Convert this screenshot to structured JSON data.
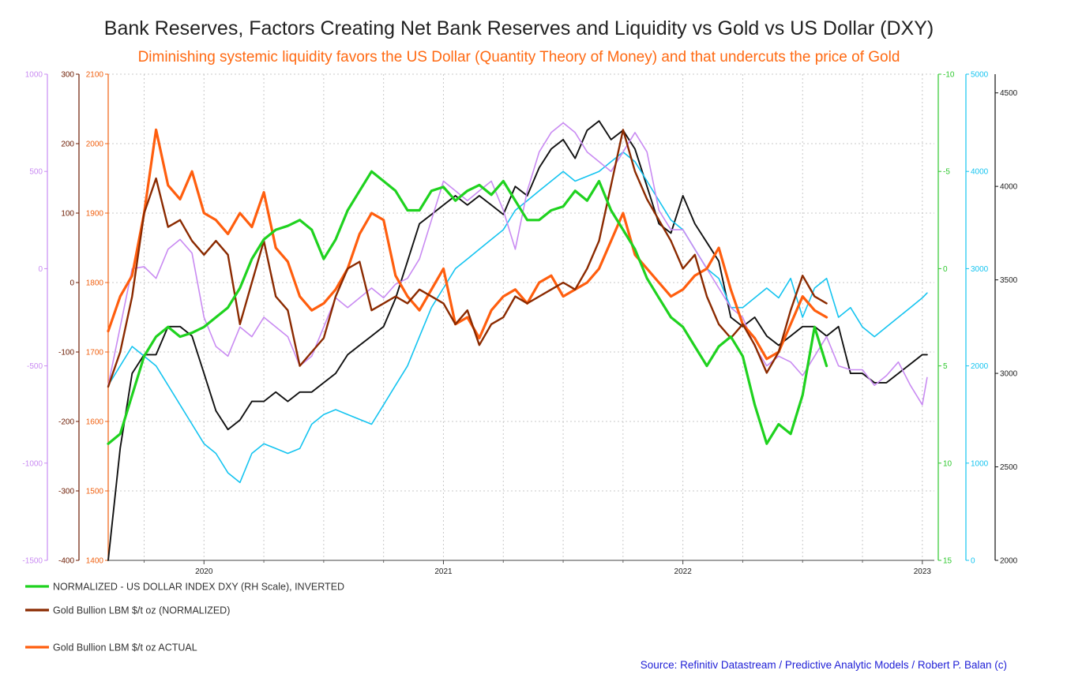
{
  "chart_data": {
    "type": "line",
    "title": "Bank Reserves, Factors Creating Net Bank Reserves and Liquidity vs Gold vs US Dollar (DXY)",
    "subtitle": "Diminishing systemic liquidity favors the US Dollar (Quantity Theory of Money) and that undercuts the price of Gold",
    "source": "Source: Refinitiv Datastream / Predictive Analytic Models / Robert P. Balan (c)",
    "x_range": [
      2019.6,
      2023.05
    ],
    "x_ticks": [
      {
        "label": "2020",
        "value": 2020.0
      },
      {
        "label": "2021",
        "value": 2021.0
      },
      {
        "label": "2022",
        "value": 2022.0
      },
      {
        "label": "2023",
        "value": 2023.0
      }
    ],
    "x_minor": [
      2019.75,
      2020.25,
      2020.5,
      2020.75,
      2021.25,
      2021.5,
      2021.75,
      2022.25,
      2022.5,
      2022.75
    ],
    "grid": true,
    "axes": [
      {
        "id": "purple",
        "side": "left",
        "slot": 0,
        "color": "#c98bf2",
        "range": [
          -1500,
          1000
        ],
        "ticks": [
          "-1500",
          "-1000",
          "-500",
          "0",
          "500",
          "1000"
        ]
      },
      {
        "id": "dark",
        "side": "left",
        "slot": 1,
        "color": "#6b1a00",
        "range": [
          -400,
          300
        ],
        "ticks": [
          "-400",
          "-300",
          "-200",
          "-100",
          "0",
          "100",
          "200",
          "300"
        ]
      },
      {
        "id": "orange",
        "side": "left",
        "slot": 2,
        "color": "#f06010",
        "range": [
          1400,
          2100
        ],
        "ticks": [
          "1400",
          "1500",
          "1600",
          "1700",
          "1800",
          "1900",
          "2000",
          "2100"
        ]
      },
      {
        "id": "green",
        "side": "right",
        "slot": 0,
        "color": "#2ec82e",
        "range": [
          15,
          -10
        ],
        "ticks": [
          "15",
          "10",
          "5",
          "0",
          "-5",
          "-10"
        ]
      },
      {
        "id": "cyan",
        "side": "right",
        "slot": 1,
        "color": "#15c4f0",
        "range": [
          0,
          5000
        ],
        "ticks": [
          "0",
          "1000",
          "2000",
          "3000",
          "4000",
          "5000"
        ]
      },
      {
        "id": "black",
        "side": "right",
        "slot": 2,
        "color": "#111111",
        "range": [
          2000,
          4600
        ],
        "ticks": [
          "2000",
          "2500",
          "3000",
          "3500",
          "4000",
          "4500"
        ]
      }
    ],
    "series": [
      {
        "name": "NORMALIZED - US DOLLAR INDEX DXY (RH Scale), INVERTED",
        "axis": "green",
        "color": "#1fd21f",
        "width": 3.2,
        "legend": true,
        "x": [
          2019.6,
          2019.65,
          2019.7,
          2019.75,
          2019.8,
          2019.85,
          2019.9,
          2019.95,
          2020.0,
          2020.05,
          2020.1,
          2020.15,
          2020.2,
          2020.25,
          2020.3,
          2020.35,
          2020.4,
          2020.45,
          2020.5,
          2020.55,
          2020.6,
          2020.65,
          2020.7,
          2020.75,
          2020.8,
          2020.85,
          2020.9,
          2020.95,
          2021.0,
          2021.05,
          2021.1,
          2021.15,
          2021.2,
          2021.25,
          2021.3,
          2021.35,
          2021.4,
          2021.45,
          2021.5,
          2021.55,
          2021.6,
          2021.65,
          2021.7,
          2021.75,
          2021.8,
          2021.85,
          2021.9,
          2021.95,
          2022.0,
          2022.05,
          2022.1,
          2022.15,
          2022.2,
          2022.25,
          2022.3,
          2022.35,
          2022.4,
          2022.45,
          2022.5,
          2022.55,
          2022.6
        ],
        "y": [
          9.0,
          8.5,
          6.5,
          4.5,
          3.5,
          3.0,
          3.5,
          3.3,
          3.0,
          2.5,
          2.0,
          1.0,
          -0.5,
          -1.5,
          -2.0,
          -2.2,
          -2.5,
          -2.0,
          -0.5,
          -1.5,
          -3.0,
          -4.0,
          -5.0,
          -4.5,
          -4.0,
          -3.0,
          -3.0,
          -4.0,
          -4.2,
          -3.5,
          -4.0,
          -4.3,
          -3.8,
          -4.5,
          -3.5,
          -2.5,
          -2.5,
          -3.0,
          -3.2,
          -4.0,
          -3.5,
          -4.5,
          -3.0,
          -2.0,
          -1.0,
          0.5,
          1.5,
          2.5,
          3.0,
          4.0,
          5.0,
          4.0,
          3.5,
          4.5,
          7.0,
          9.0,
          8.0,
          8.5,
          6.5,
          3.0,
          5.0
        ]
      },
      {
        "name": "Gold Bullion LBM $/t oz (NORMALIZED)",
        "axis": "dark",
        "color": "#8b2a00",
        "width": 2.4,
        "legend": true,
        "x": [
          2019.6,
          2019.65,
          2019.7,
          2019.75,
          2019.8,
          2019.85,
          2019.9,
          2019.95,
          2020.0,
          2020.05,
          2020.1,
          2020.15,
          2020.2,
          2020.25,
          2020.3,
          2020.35,
          2020.4,
          2020.45,
          2020.5,
          2020.55,
          2020.6,
          2020.65,
          2020.7,
          2020.75,
          2020.8,
          2020.85,
          2020.9,
          2020.95,
          2021.0,
          2021.05,
          2021.1,
          2021.15,
          2021.2,
          2021.25,
          2021.3,
          2021.35,
          2021.4,
          2021.45,
          2021.5,
          2021.55,
          2021.6,
          2021.65,
          2021.7,
          2021.75,
          2021.8,
          2021.85,
          2021.9,
          2021.95,
          2022.0,
          2022.05,
          2022.1,
          2022.15,
          2022.2,
          2022.25,
          2022.3,
          2022.35,
          2022.4,
          2022.45,
          2022.5,
          2022.55,
          2022.6
        ],
        "y": [
          -150,
          -100,
          -20,
          100,
          150,
          80,
          90,
          60,
          40,
          60,
          40,
          -60,
          0,
          60,
          -20,
          -40,
          -120,
          -100,
          -80,
          -20,
          20,
          30,
          -40,
          -30,
          -20,
          -30,
          -10,
          -20,
          -30,
          -60,
          -40,
          -90,
          -60,
          -50,
          -20,
          -30,
          -20,
          -10,
          0,
          -10,
          20,
          60,
          140,
          220,
          160,
          120,
          90,
          60,
          20,
          40,
          -20,
          -60,
          -80,
          -60,
          -90,
          -130,
          -100,
          -40,
          10,
          -20,
          -30
        ]
      },
      {
        "name": "Gold Bullion LBM $/t oz ACTUAL",
        "axis": "orange",
        "color": "#ff5e0e",
        "width": 3.2,
        "legend": true,
        "x": [
          2019.6,
          2019.65,
          2019.7,
          2019.75,
          2019.8,
          2019.85,
          2019.9,
          2019.95,
          2020.0,
          2020.05,
          2020.1,
          2020.15,
          2020.2,
          2020.25,
          2020.3,
          2020.35,
          2020.4,
          2020.45,
          2020.5,
          2020.55,
          2020.6,
          2020.65,
          2020.7,
          2020.75,
          2020.8,
          2020.85,
          2020.9,
          2020.95,
          2021.0,
          2021.05,
          2021.1,
          2021.15,
          2021.2,
          2021.25,
          2021.3,
          2021.35,
          2021.4,
          2021.45,
          2021.5,
          2021.55,
          2021.6,
          2021.65,
          2021.7,
          2021.75,
          2021.8,
          2021.85,
          2021.9,
          2021.95,
          2022.0,
          2022.05,
          2022.1,
          2022.15,
          2022.2,
          2022.25,
          2022.3,
          2022.35,
          2022.4,
          2022.45,
          2022.5,
          2022.55,
          2022.6
        ],
        "y": [
          1730,
          1780,
          1810,
          1900,
          2020,
          1940,
          1920,
          1960,
          1900,
          1890,
          1870,
          1900,
          1880,
          1930,
          1850,
          1830,
          1780,
          1760,
          1770,
          1790,
          1820,
          1870,
          1900,
          1890,
          1810,
          1780,
          1760,
          1790,
          1820,
          1740,
          1750,
          1720,
          1760,
          1780,
          1790,
          1770,
          1800,
          1810,
          1780,
          1790,
          1800,
          1820,
          1860,
          1900,
          1840,
          1820,
          1800,
          1780,
          1790,
          1810,
          1820,
          1850,
          1790,
          1740,
          1720,
          1690,
          1700,
          1740,
          1780,
          1760,
          1750
        ]
      },
      {
        "name": "Purple",
        "axis": "purple",
        "color": "#c98bf2",
        "width": 1.6,
        "legend": false,
        "x": [
          2019.6,
          2019.65,
          2019.7,
          2019.75,
          2019.8,
          2019.85,
          2019.9,
          2019.95,
          2020.0,
          2020.05,
          2020.1,
          2020.15,
          2020.2,
          2020.25,
          2020.3,
          2020.35,
          2020.4,
          2020.45,
          2020.5,
          2020.55,
          2020.6,
          2020.65,
          2020.7,
          2020.75,
          2020.8,
          2020.85,
          2020.9,
          2020.95,
          2021.0,
          2021.05,
          2021.1,
          2021.15,
          2021.2,
          2021.25,
          2021.3,
          2021.35,
          2021.4,
          2021.45,
          2021.5,
          2021.55,
          2021.6,
          2021.65,
          2021.7,
          2021.75,
          2021.8,
          2021.85,
          2021.9,
          2021.95,
          2022.0,
          2022.05,
          2022.1,
          2022.15,
          2022.2,
          2022.25,
          2022.3,
          2022.35,
          2022.4,
          2022.45,
          2022.5,
          2022.55,
          2022.6,
          2022.65,
          2022.7,
          2022.75,
          2022.8,
          2022.85,
          2022.9,
          2022.95,
          2023.0,
          2023.02
        ],
        "y": [
          -600,
          -300,
          0,
          10,
          -50,
          100,
          150,
          80,
          -250,
          -400,
          -450,
          -300,
          -350,
          -250,
          -300,
          -350,
          -500,
          -450,
          -300,
          -150,
          -200,
          -150,
          -100,
          -150,
          -80,
          -50,
          50,
          250,
          450,
          400,
          350,
          400,
          450,
          300,
          100,
          400,
          600,
          700,
          750,
          700,
          600,
          550,
          500,
          600,
          700,
          600,
          300,
          200,
          200,
          100,
          0,
          -100,
          -200,
          -250,
          -400,
          -500,
          -450,
          -480,
          -550,
          -450,
          -350,
          -500,
          -520,
          -520,
          -600,
          -550,
          -480,
          -600,
          -700,
          -560
        ]
      },
      {
        "name": "Cyan",
        "axis": "cyan",
        "color": "#15c4f0",
        "width": 1.6,
        "legend": false,
        "x": [
          2019.6,
          2019.65,
          2019.7,
          2019.75,
          2019.8,
          2019.85,
          2019.9,
          2019.95,
          2020.0,
          2020.05,
          2020.1,
          2020.15,
          2020.2,
          2020.25,
          2020.3,
          2020.35,
          2020.4,
          2020.45,
          2020.5,
          2020.55,
          2020.6,
          2020.65,
          2020.7,
          2020.75,
          2020.8,
          2020.85,
          2020.9,
          2020.95,
          2021.0,
          2021.05,
          2021.1,
          2021.15,
          2021.2,
          2021.25,
          2021.3,
          2021.35,
          2021.4,
          2021.45,
          2021.5,
          2021.55,
          2021.6,
          2021.65,
          2021.7,
          2021.75,
          2021.8,
          2021.85,
          2021.9,
          2021.95,
          2022.0,
          2022.05,
          2022.1,
          2022.15,
          2022.2,
          2022.25,
          2022.3,
          2022.35,
          2022.4,
          2022.45,
          2022.5,
          2022.55,
          2022.6,
          2022.65,
          2022.7,
          2022.75,
          2022.8,
          2022.85,
          2022.9,
          2022.95,
          2023.0,
          2023.02
        ],
        "y": [
          1800,
          2000,
          2200,
          2100,
          2000,
          1800,
          1600,
          1400,
          1200,
          1100,
          900,
          800,
          1100,
          1200,
          1150,
          1100,
          1150,
          1400,
          1500,
          1550,
          1500,
          1450,
          1400,
          1600,
          1800,
          2000,
          2300,
          2600,
          2800,
          3000,
          3100,
          3200,
          3300,
          3400,
          3600,
          3700,
          3800,
          3900,
          4000,
          3900,
          3950,
          4000,
          4100,
          4200,
          4100,
          3900,
          3700,
          3500,
          3400,
          3200,
          3000,
          2900,
          2600,
          2600,
          2700,
          2800,
          2700,
          2900,
          2500,
          2800,
          2900,
          2500,
          2600,
          2400,
          2300,
          2400,
          2500,
          2600,
          2700,
          2750
        ]
      },
      {
        "name": "Black",
        "axis": "black",
        "color": "#111111",
        "width": 1.9,
        "legend": false,
        "x": [
          2019.6,
          2019.65,
          2019.7,
          2019.75,
          2019.8,
          2019.85,
          2019.9,
          2019.95,
          2020.0,
          2020.05,
          2020.1,
          2020.15,
          2020.2,
          2020.25,
          2020.3,
          2020.35,
          2020.4,
          2020.45,
          2020.5,
          2020.55,
          2020.6,
          2020.65,
          2020.7,
          2020.75,
          2020.8,
          2020.85,
          2020.9,
          2020.95,
          2021.0,
          2021.05,
          2021.1,
          2021.15,
          2021.2,
          2021.25,
          2021.3,
          2021.35,
          2021.4,
          2021.45,
          2021.5,
          2021.55,
          2021.6,
          2021.65,
          2021.7,
          2021.75,
          2021.8,
          2021.85,
          2021.9,
          2021.95,
          2022.0,
          2022.05,
          2022.1,
          2022.15,
          2022.2,
          2022.25,
          2022.3,
          2022.35,
          2022.4,
          2022.45,
          2022.5,
          2022.55,
          2022.6,
          2022.65,
          2022.7,
          2022.75,
          2022.8,
          2022.85,
          2022.9,
          2022.95,
          2023.0,
          2023.02
        ],
        "y": [
          2000,
          2600,
          3000,
          3100,
          3100,
          3250,
          3250,
          3200,
          3000,
          2800,
          2700,
          2750,
          2850,
          2850,
          2900,
          2850,
          2900,
          2900,
          2950,
          3000,
          3100,
          3150,
          3200,
          3250,
          3400,
          3600,
          3800,
          3850,
          3900,
          3950,
          3900,
          3950,
          3900,
          3850,
          4000,
          3950,
          4100,
          4200,
          4250,
          4150,
          4300,
          4350,
          4250,
          4300,
          4200,
          4000,
          3800,
          3750,
          3950,
          3800,
          3700,
          3600,
          3300,
          3250,
          3300,
          3200,
          3150,
          3200,
          3250,
          3250,
          3200,
          3250,
          3000,
          3000,
          2950,
          2950,
          3000,
          3050,
          3100,
          3100
        ]
      }
    ]
  }
}
